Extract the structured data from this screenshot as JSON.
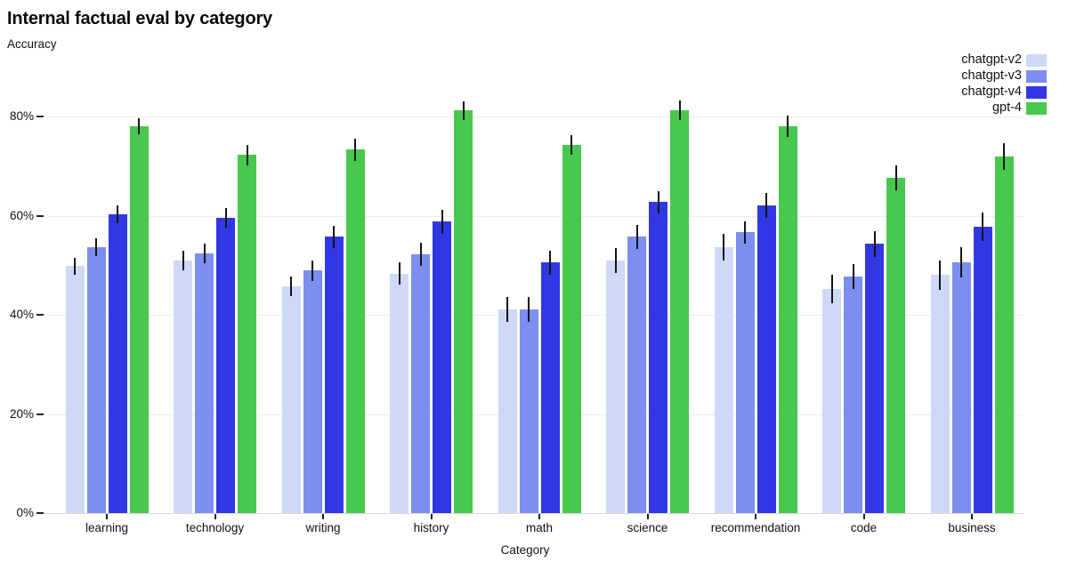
{
  "title": "Internal factual eval by category",
  "y_axis_label": "Accuracy",
  "x_axis_label": "Category",
  "colors": {
    "chatgpt_v2": "#cdd9f7",
    "chatgpt_v3": "#7c8ef0",
    "chatgpt_v4": "#3138e3",
    "gpt_4": "#48c84e",
    "errorbar": "#141414",
    "gridline": "#ededed"
  },
  "chart_data": {
    "type": "bar",
    "title": "Internal factual eval by category",
    "xlabel": "Category",
    "ylabel": "Accuracy",
    "categories": [
      "learning",
      "technology",
      "writing",
      "history",
      "math",
      "science",
      "recommendation",
      "code",
      "business"
    ],
    "series": [
      {
        "name": "chatgpt-v2",
        "color": "#cdd9f7",
        "values": [
          49.8,
          50.9,
          45.8,
          48.3,
          41.0,
          51.0,
          53.6,
          45.2,
          48.0
        ],
        "errors": [
          1.7,
          2.0,
          2.0,
          2.2,
          2.5,
          2.5,
          2.7,
          2.8,
          3.0
        ]
      },
      {
        "name": "chatgpt-v3",
        "color": "#7c8ef0",
        "values": [
          53.6,
          52.4,
          48.9,
          52.2,
          41.0,
          55.7,
          56.6,
          47.7,
          50.6
        ],
        "errors": [
          1.8,
          2.0,
          2.0,
          2.4,
          2.5,
          2.5,
          2.3,
          2.5,
          3.0
        ]
      },
      {
        "name": "chatgpt-v4",
        "color": "#3138e3",
        "values": [
          60.2,
          59.6,
          55.7,
          58.8,
          50.5,
          62.7,
          62.1,
          54.3,
          57.7
        ],
        "errors": [
          1.8,
          2.0,
          2.2,
          2.4,
          2.5,
          2.2,
          2.5,
          2.6,
          2.9
        ]
      },
      {
        "name": "gpt-4",
        "color": "#48c84e",
        "values": [
          78.1,
          72.2,
          73.3,
          81.2,
          74.3,
          81.3,
          78.0,
          67.7,
          71.9
        ],
        "errors": [
          1.6,
          2.0,
          2.2,
          1.9,
          2.0,
          2.0,
          2.2,
          2.5,
          2.7
        ]
      }
    ],
    "y_ticks": [
      "0%",
      "20%",
      "40%",
      "60%",
      "80%"
    ],
    "y_tick_values": [
      0,
      20,
      40,
      60,
      80
    ],
    "ylim": [
      0,
      88
    ],
    "grid": true,
    "error_bars": true,
    "legend_position": "top-right"
  }
}
